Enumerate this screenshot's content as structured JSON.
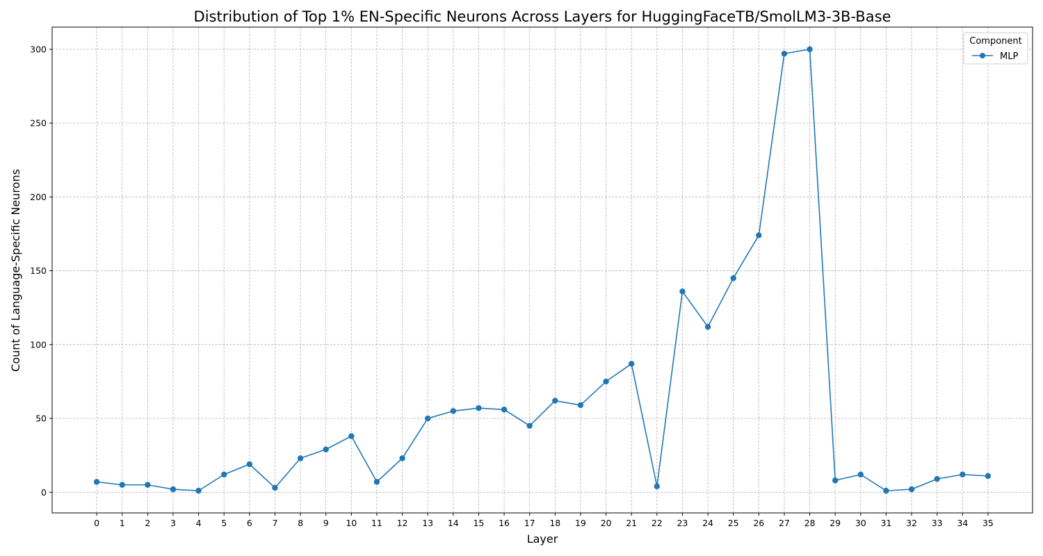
{
  "chart_data": {
    "type": "line",
    "title": "Distribution of Top 1% EN-Specific Neurons Across Layers for HuggingFaceTB/SmolLM3-3B-Base",
    "xlabel": "Layer",
    "ylabel": "Count of Language-Specific Neurons",
    "x": [
      0,
      1,
      2,
      3,
      4,
      5,
      6,
      7,
      8,
      9,
      10,
      11,
      12,
      13,
      14,
      15,
      16,
      17,
      18,
      19,
      20,
      21,
      22,
      23,
      24,
      25,
      26,
      27,
      28,
      29,
      30,
      31,
      32,
      33,
      34,
      35
    ],
    "series": [
      {
        "name": "MLP",
        "color": "#1f77b4",
        "values": [
          7,
          5,
          5,
          2,
          1,
          12,
          19,
          3,
          23,
          29,
          38,
          7,
          23,
          50,
          55,
          57,
          56,
          45,
          62,
          59,
          75,
          87,
          4,
          136,
          112,
          145,
          174,
          297,
          300,
          8,
          12,
          1,
          2,
          9,
          12,
          11
        ]
      }
    ],
    "xlim": [
      -1.75,
      36.75
    ],
    "ylim": [
      -14,
      315
    ],
    "yticks": [
      0,
      50,
      100,
      150,
      200,
      250,
      300
    ],
    "grid": true,
    "legend": {
      "title": "Component",
      "placement": "top-right"
    }
  }
}
